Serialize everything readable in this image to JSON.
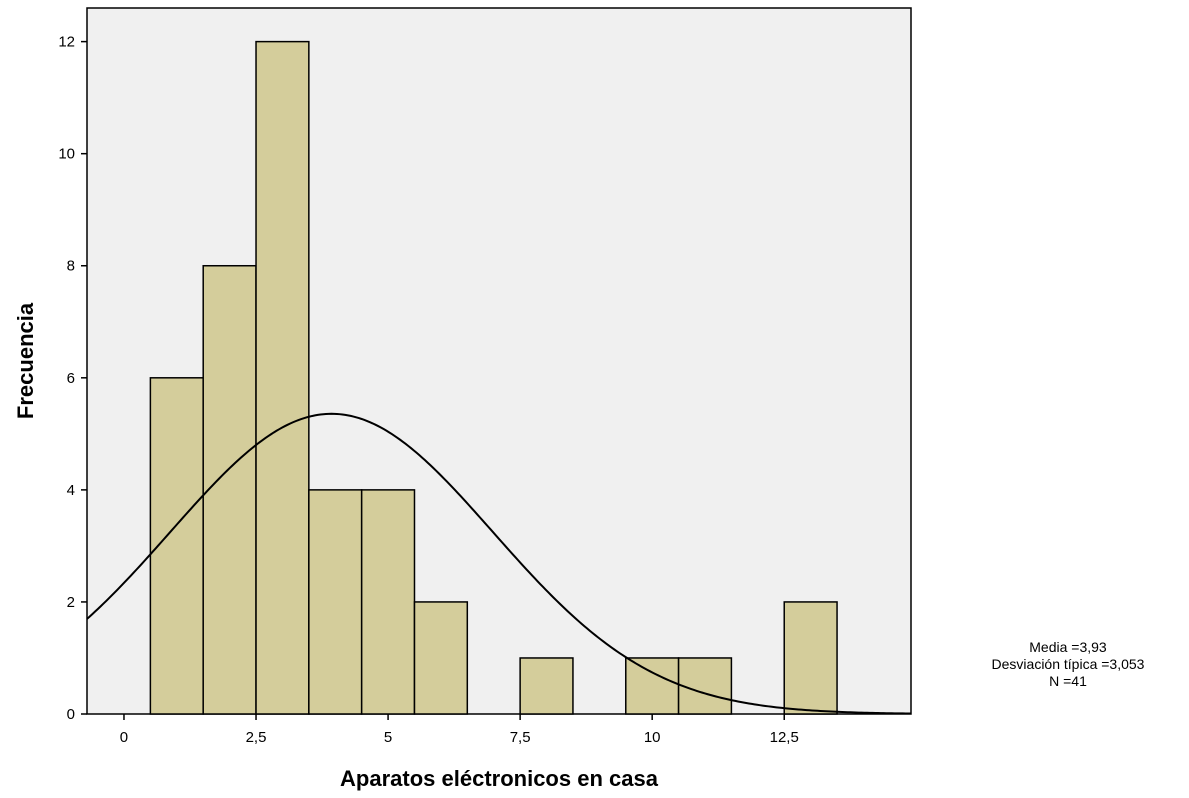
{
  "chart_data": {
    "type": "bar",
    "subtype": "histogram",
    "xlabel": "Aparatos eléctronicos en casa",
    "ylabel": "Frecuencia",
    "xlim": [
      -0.7,
      14.9
    ],
    "ylim": [
      0,
      12.6
    ],
    "xticks": [
      0,
      2.5,
      5,
      7.5,
      10,
      12.5
    ],
    "xtick_labels": [
      "0",
      "2,5",
      "5",
      "7,5",
      "10",
      "12,5"
    ],
    "yticks": [
      0,
      2,
      4,
      6,
      8,
      10,
      12
    ],
    "ytick_labels": [
      "0",
      "2",
      "4",
      "6",
      "8",
      "10",
      "12"
    ],
    "bin_width": 1,
    "bins": [
      {
        "center": 1,
        "count": 6
      },
      {
        "center": 2,
        "count": 8
      },
      {
        "center": 3,
        "count": 12
      },
      {
        "center": 4,
        "count": 4
      },
      {
        "center": 5,
        "count": 4
      },
      {
        "center": 6,
        "count": 2
      },
      {
        "center": 8,
        "count": 1
      },
      {
        "center": 10,
        "count": 1
      },
      {
        "center": 11,
        "count": 1
      },
      {
        "center": 13,
        "count": 2
      }
    ],
    "normal_curve": {
      "mean": 3.93,
      "sd": 3.053,
      "n": 41
    },
    "stats_lines": [
      "Media =3,93",
      "Desviación típica =3,053",
      "N =41"
    ],
    "grid": false,
    "colors": {
      "bar_fill": "#d4cd9b",
      "bar_stroke": "#000000",
      "plot_bg": "#f0f0f0",
      "curve": "#000000"
    }
  }
}
